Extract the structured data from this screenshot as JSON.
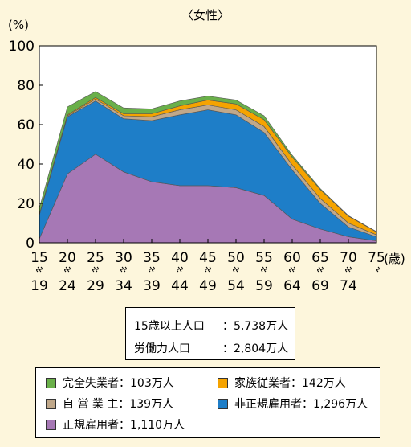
{
  "chart_data": {
    "type": "area",
    "stacked": true,
    "title": "〈女性〉",
    "y_unit": "(%)",
    "x_unit": "(歳)",
    "ylim": [
      0,
      100
    ],
    "y_ticks": [
      0,
      20,
      40,
      60,
      80,
      100
    ],
    "x_ticks": [
      {
        "top": "15",
        "bottom": "19"
      },
      {
        "top": "20",
        "bottom": "24"
      },
      {
        "top": "25",
        "bottom": "29"
      },
      {
        "top": "30",
        "bottom": "34"
      },
      {
        "top": "35",
        "bottom": "39"
      },
      {
        "top": "40",
        "bottom": "44"
      },
      {
        "top": "45",
        "bottom": "49"
      },
      {
        "top": "50",
        "bottom": "54"
      },
      {
        "top": "55",
        "bottom": "59"
      },
      {
        "top": "60",
        "bottom": "64"
      },
      {
        "top": "65",
        "bottom": "69"
      },
      {
        "top": "70",
        "bottom": "74"
      },
      {
        "top": "75",
        "bottom": ""
      }
    ],
    "grid": false,
    "series": [
      {
        "name": "正規雇用者",
        "color": "#a678b5",
        "values": [
          2,
          35,
          45,
          36,
          31,
          29,
          29,
          28,
          24,
          12,
          7,
          3,
          1
        ]
      },
      {
        "name": "非正規雇用者",
        "color": "#1e7ec8",
        "values": [
          12,
          29,
          27,
          27,
          31,
          36,
          38.5,
          37,
          32,
          25,
          13,
          5,
          2
        ]
      },
      {
        "name": "自営業主",
        "color": "#c0a88a",
        "values": [
          0.2,
          0.5,
          1,
          1.5,
          2,
          2.5,
          2.5,
          2.5,
          3,
          2.5,
          2.5,
          2,
          1
        ]
      },
      {
        "name": "家族従業者",
        "color": "#f5a300",
        "values": [
          0.3,
          0.5,
          0.8,
          1,
          1.5,
          2,
          2.5,
          3,
          3.5,
          4,
          4.5,
          3.5,
          1.5
        ]
      },
      {
        "name": "完全失業者",
        "color": "#6ab04a",
        "values": [
          3,
          4,
          3,
          3,
          2.5,
          2.5,
          2,
          2,
          2,
          1,
          0.5,
          0.3,
          0.2
        ]
      }
    ]
  },
  "summary": {
    "rows": [
      {
        "label": "15歳以上人口",
        "value": "：5,738万人"
      },
      {
        "label": "労働力人口",
        "value": "：2,804万人"
      }
    ]
  },
  "legend": {
    "items": [
      {
        "label": "完全失業者：103万人",
        "color": "#6ab04a"
      },
      {
        "label": "家族従業者：142万人",
        "color": "#f5a300"
      },
      {
        "label": "自 営 業 主：139万人",
        "color": "#c0a88a"
      },
      {
        "label": "非正規雇用者：1,296万人",
        "color": "#1e7ec8"
      },
      {
        "label": "正規雇用者：1,110万人",
        "color": "#a678b5"
      }
    ]
  }
}
